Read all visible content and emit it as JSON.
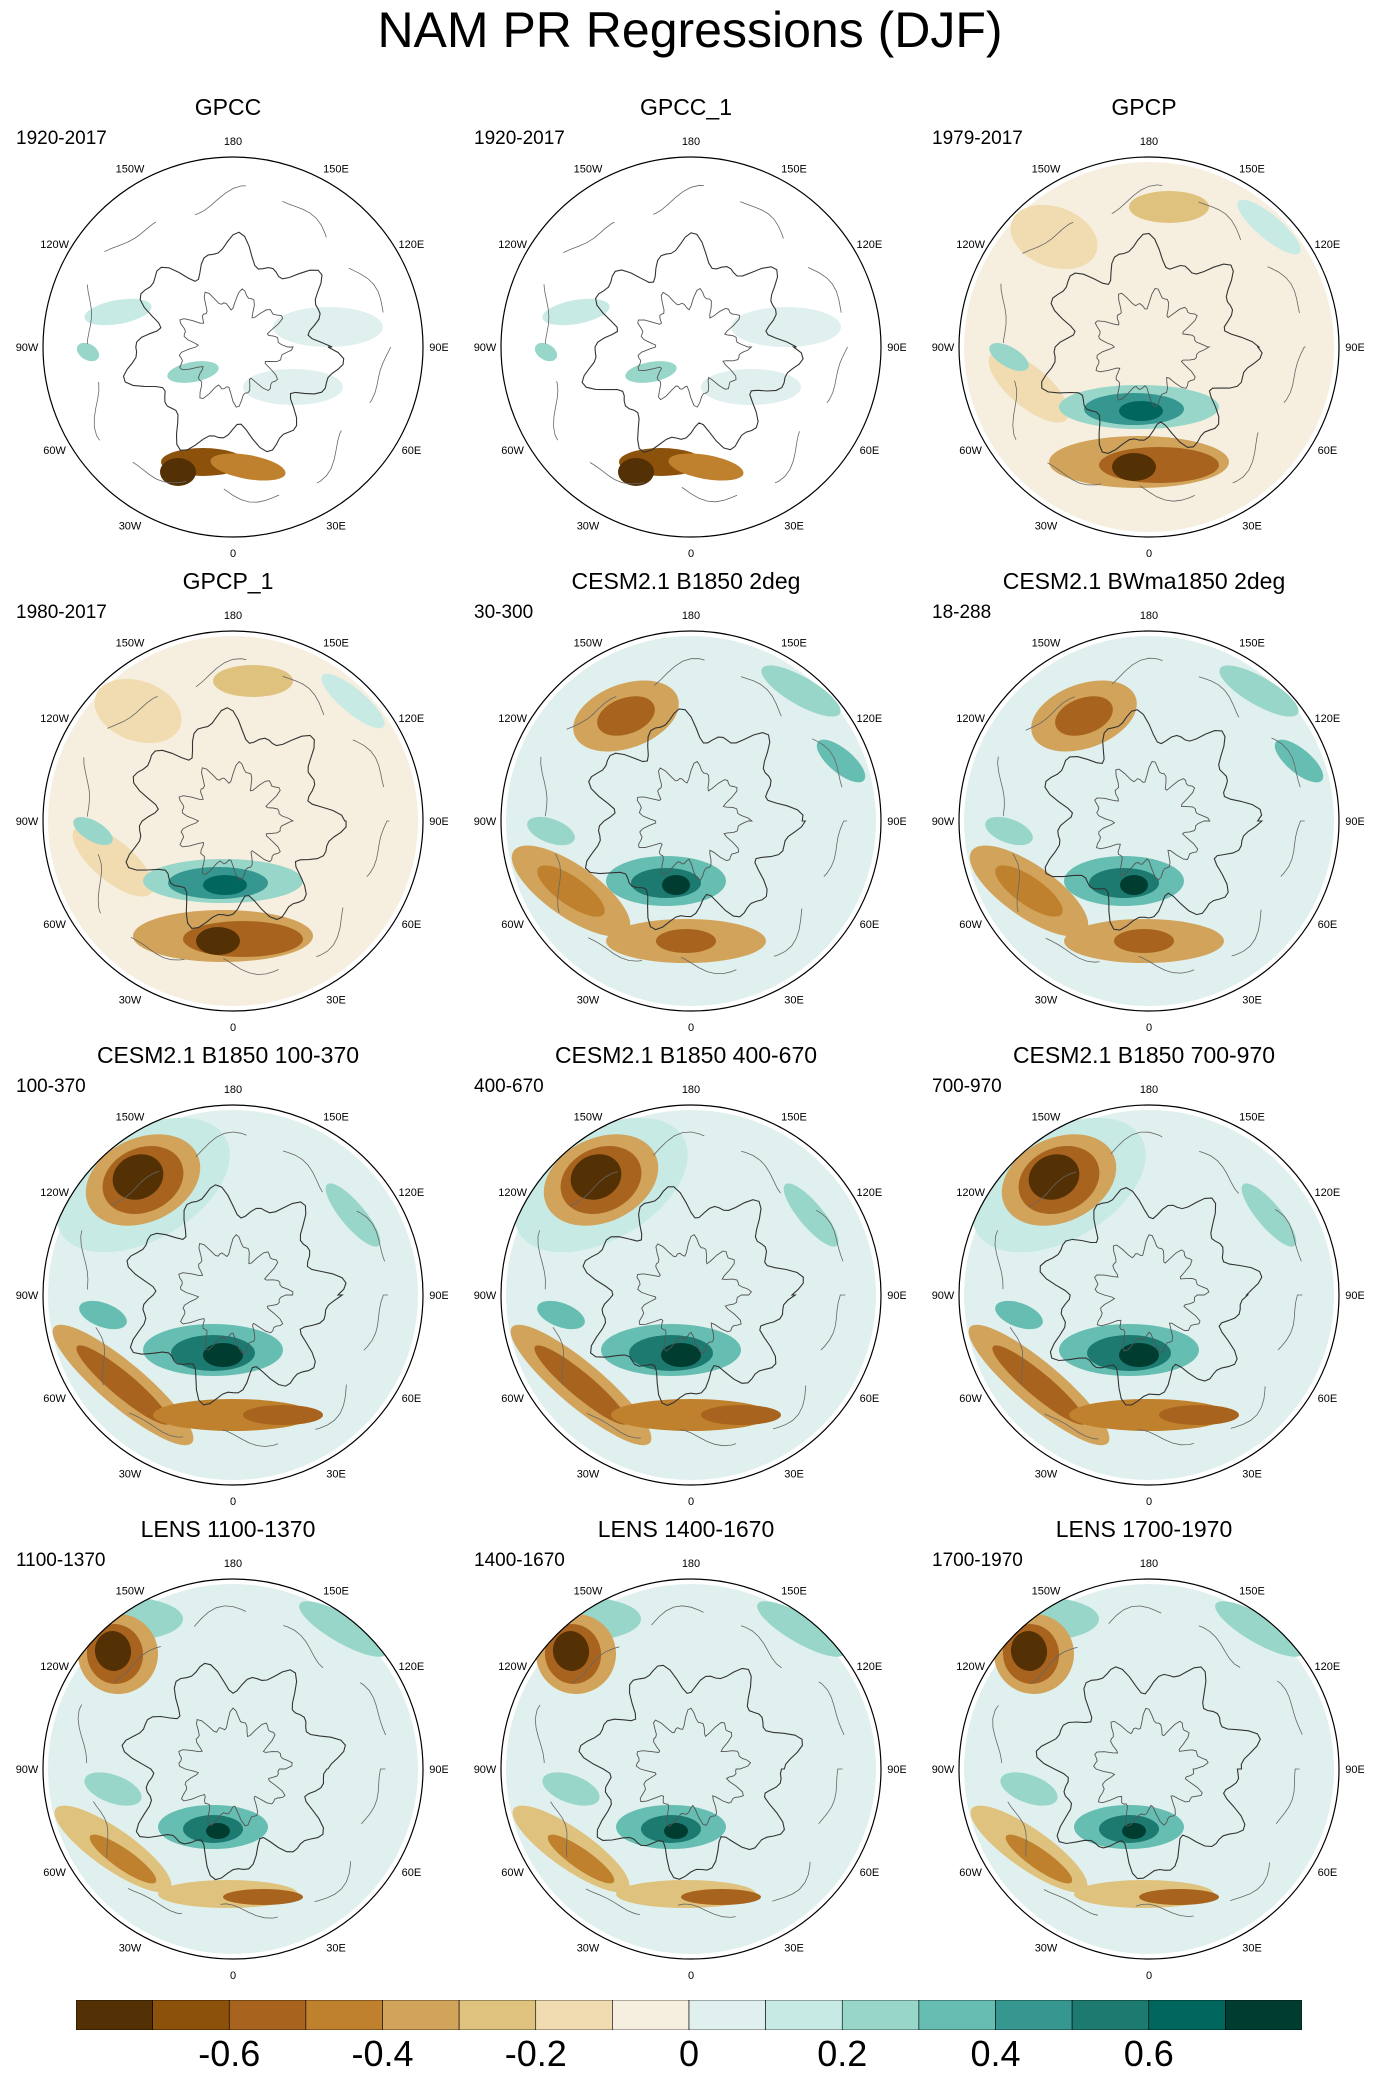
{
  "title": "NAM PR Regressions (DJF)",
  "panels": [
    {
      "title": "GPCC",
      "period": "1920-2017",
      "kind": "gpcc"
    },
    {
      "title": "GPCC_1",
      "period": "1920-2017",
      "kind": "gpcc"
    },
    {
      "title": "GPCP",
      "period": "1979-2017",
      "kind": "obs"
    },
    {
      "title": "GPCP_1",
      "period": "1980-2017",
      "kind": "obs"
    },
    {
      "title": "CESM2.1 B1850 2deg",
      "period": "30-300",
      "kind": "model"
    },
    {
      "title": "CESM2.1 BWma1850 2deg",
      "period": "18-288",
      "kind": "model"
    },
    {
      "title": "CESM2.1 B1850 100-370",
      "period": "100-370",
      "kind": "strong"
    },
    {
      "title": "CESM2.1 B1850 400-670",
      "period": "400-670",
      "kind": "strong"
    },
    {
      "title": "CESM2.1 B1850 700-970",
      "period": "700-970",
      "kind": "strong"
    },
    {
      "title": "LENS 1100-1370",
      "period": "1100-1370",
      "kind": "lens"
    },
    {
      "title": "LENS 1400-1670",
      "period": "1400-1670",
      "kind": "lens"
    },
    {
      "title": "LENS 1700-1970",
      "period": "1700-1970",
      "kind": "lens"
    }
  ],
  "lon_labels": [
    "180",
    "150E",
    "120E",
    "90E",
    "60E",
    "30E",
    "0",
    "30W",
    "60W",
    "90W",
    "120W",
    "150W"
  ],
  "colorbar": {
    "colors": [
      "#543005",
      "#8c510a",
      "#a8641e",
      "#bf812d",
      "#d2a35a",
      "#dfc27d",
      "#f0dcb0",
      "#f6efe0",
      "#e0f0ee",
      "#c7eae5",
      "#97d6c9",
      "#66bdb1",
      "#35978f",
      "#1c7a70",
      "#01665e",
      "#003c30"
    ],
    "labels": [
      "-0.6",
      "-0.4",
      "-0.2",
      "0",
      "0.2",
      "0.4",
      "0.6"
    ]
  }
}
